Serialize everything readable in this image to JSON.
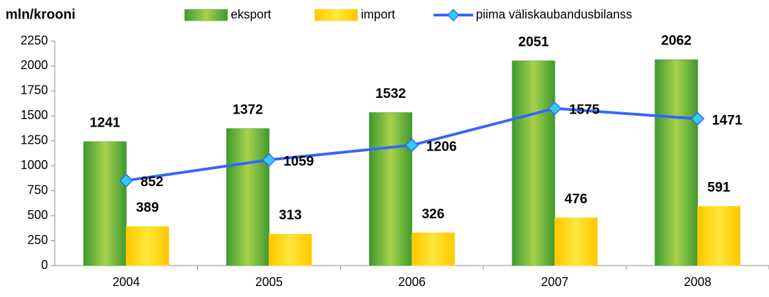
{
  "chart_data": {
    "type": "bar",
    "y_label": "mln/krooni",
    "categories": [
      "2004",
      "2005",
      "2006",
      "2007",
      "2008"
    ],
    "series": [
      {
        "name": "eksport",
        "type": "bar",
        "color": "#3f9a2f",
        "values": [
          1241,
          1372,
          1532,
          2051,
          2062
        ]
      },
      {
        "name": "import",
        "type": "bar",
        "color": "#ffc800",
        "values": [
          389,
          313,
          326,
          476,
          591
        ]
      },
      {
        "name": "piima väliskaubandusbilanss",
        "type": "line",
        "color": "#3366ff",
        "marker_color": "#33ccee",
        "values": [
          852,
          1059,
          1206,
          1575,
          1471
        ]
      }
    ],
    "ylim": [
      0,
      2250
    ],
    "yticks": [
      0,
      250,
      500,
      750,
      1000,
      1250,
      1500,
      1750,
      2000,
      2250
    ],
    "grid": false
  }
}
